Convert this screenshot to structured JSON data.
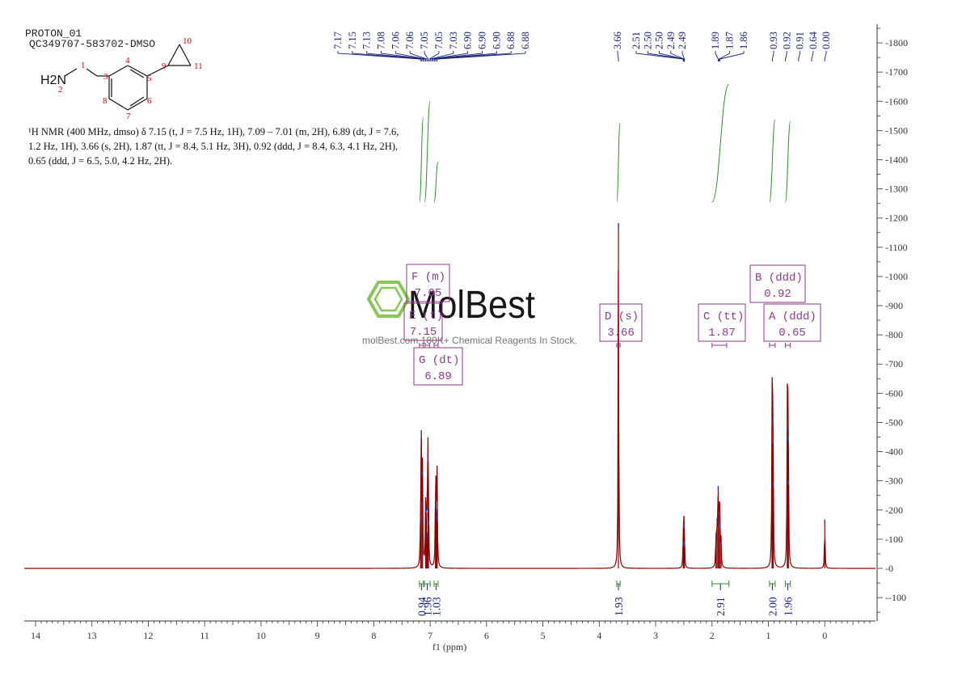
{
  "header": {
    "line1": "PROTON_01",
    "line2": "QC349707-583702-DMSO"
  },
  "structure": {
    "amine_group": "H2N",
    "atom_labels": [
      "1",
      "2",
      "3",
      "4",
      "5",
      "6",
      "7",
      "8",
      "9",
      "10",
      "11"
    ]
  },
  "nmr_summary": [
    "¹H NMR (400 MHz, dmso) δ 7.15 (t, J = 7.5 Hz, 1H), 7.09 – 7.01 (m, 2H), 6.89 (dt, J = 7.6,",
    "1.2 Hz, 1H), 3.66 (s, 2H), 1.87 (tt, J = 8.4, 5.1 Hz, 3H), 0.92 (ddd, J = 8.4, 6.3, 4.1 Hz, 2H),",
    "0.65 (ddd, J = 6.5, 5.0, 4.2 Hz, 2H)."
  ],
  "watermark": {
    "brand": "MolBest",
    "tagline": "molBest.com 180K+ Chemical Reagents In Stock."
  },
  "colors": {
    "spectrum": "#8b0000",
    "integral": "#2e8b2e",
    "peak_label": "#1a237e",
    "multiplet_box": "#8e3a8e",
    "axis": "#333333",
    "brand_green": "#7ac143"
  },
  "chart_data": {
    "type": "line",
    "title": "",
    "xlabel": "f1 (ppm)",
    "ylabel": "",
    "xlim": [
      14.2,
      -0.9
    ],
    "ylim": [
      -180,
      1850
    ],
    "x_ticks": [
      14,
      13,
      12,
      11,
      10,
      9,
      8,
      7,
      6,
      5,
      4,
      3,
      2,
      1,
      0
    ],
    "y_ticks": [
      -100,
      0,
      100,
      200,
      300,
      400,
      500,
      600,
      700,
      800,
      900,
      1000,
      1100,
      1200,
      1300,
      1400,
      1500,
      1600,
      1700,
      1800
    ],
    "peaks": [
      {
        "ppm": 7.17,
        "h": 170
      },
      {
        "ppm": 7.155,
        "h": 460
      },
      {
        "ppm": 7.135,
        "h": 330
      },
      {
        "ppm": 7.08,
        "h": 210
      },
      {
        "ppm": 7.065,
        "h": 190
      },
      {
        "ppm": 7.05,
        "h": 120
      },
      {
        "ppm": 7.04,
        "h": 380
      },
      {
        "ppm": 7.03,
        "h": 160
      },
      {
        "ppm": 6.905,
        "h": 220
      },
      {
        "ppm": 6.895,
        "h": 240
      },
      {
        "ppm": 6.88,
        "h": 200
      },
      {
        "ppm": 6.875,
        "h": 180
      },
      {
        "ppm": 3.66,
        "h": 1180
      },
      {
        "ppm": 2.51,
        "h": 90
      },
      {
        "ppm": 2.5,
        "h": 150
      },
      {
        "ppm": 2.49,
        "h": 90
      },
      {
        "ppm": 1.93,
        "h": 120
      },
      {
        "ppm": 1.91,
        "h": 170
      },
      {
        "ppm": 1.89,
        "h": 280
      },
      {
        "ppm": 1.87,
        "h": 180
      },
      {
        "ppm": 1.86,
        "h": 150
      },
      {
        "ppm": 1.84,
        "h": 90
      },
      {
        "ppm": 0.935,
        "h": 510
      },
      {
        "ppm": 0.925,
        "h": 440
      },
      {
        "ppm": 0.915,
        "h": 290
      },
      {
        "ppm": 0.665,
        "h": 480
      },
      {
        "ppm": 0.655,
        "h": 450
      },
      {
        "ppm": 0.645,
        "h": 300
      },
      {
        "ppm": 0.0,
        "h": 165
      }
    ],
    "peak_label_groups": [
      {
        "labels": [
          "7.17",
          "7.15",
          "7.13",
          "7.08",
          "7.06",
          "7.06",
          "7.05",
          "7.05",
          "7.03",
          "6.90",
          "6.90",
          "6.90",
          "6.88",
          "6.88"
        ]
      },
      {
        "labels": [
          "3.66"
        ]
      },
      {
        "labels": [
          "2.51",
          "2.50",
          "2.50",
          "2.49",
          "2.49"
        ]
      },
      {
        "labels": [
          "1.89",
          "1.87",
          "1.86"
        ]
      },
      {
        "labels": [
          "0.93",
          "0.92",
          "0.91",
          "0.64",
          "0.00"
        ]
      }
    ],
    "multiplets": [
      {
        "letter": "F",
        "type": "(m)",
        "ppm": "7.05",
        "range": [
          7.09,
          7.01
        ]
      },
      {
        "letter": "E",
        "type": "(t)",
        "ppm": "7.15",
        "range": [
          7.19,
          7.12
        ]
      },
      {
        "letter": "G",
        "type": "(dt)",
        "ppm": "6.89",
        "range": [
          6.93,
          6.86
        ]
      },
      {
        "letter": "D",
        "type": "(s)",
        "ppm": "3.66",
        "range": [
          3.69,
          3.63
        ]
      },
      {
        "letter": "C",
        "type": "(tt)",
        "ppm": "1.87",
        "range": [
          2.0,
          1.74
        ]
      },
      {
        "letter": "B",
        "type": "(ddd)",
        "ppm": "0.92",
        "range": [
          0.98,
          0.88
        ]
      },
      {
        "letter": "A",
        "type": "(ddd)",
        "ppm": "0.65",
        "range": [
          0.7,
          0.61
        ]
      }
    ],
    "integrals": [
      {
        "from": 7.19,
        "to": 7.12,
        "value": "0.94"
      },
      {
        "from": 7.1,
        "to": 7.0,
        "value": "1.96"
      },
      {
        "from": 6.93,
        "to": 6.86,
        "value": "1.03"
      },
      {
        "from": 3.69,
        "to": 3.63,
        "value": "1.93"
      },
      {
        "from": 2.0,
        "to": 1.7,
        "value": "2.91"
      },
      {
        "from": 0.98,
        "to": 0.88,
        "value": "2.00"
      },
      {
        "from": 0.7,
        "to": 0.61,
        "value": "1.96"
      }
    ]
  }
}
